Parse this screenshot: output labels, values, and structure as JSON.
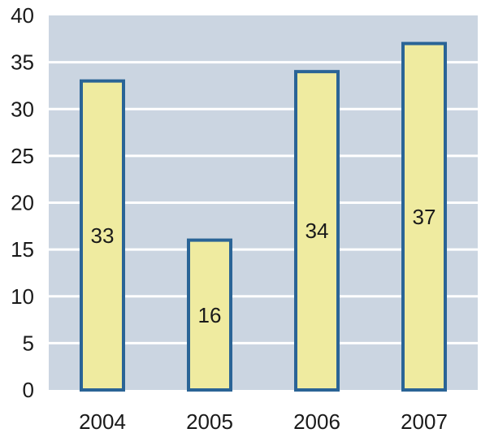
{
  "chart_data": {
    "type": "bar",
    "title": "",
    "xlabel": "",
    "ylabel": "",
    "categories": [
      "2004",
      "2005",
      "2006",
      "2007"
    ],
    "values": [
      33,
      16,
      34,
      37
    ],
    "data_labels": [
      "33",
      "16",
      "34",
      "37"
    ],
    "ylim": [
      0,
      40
    ],
    "yticks": [
      0,
      5,
      10,
      15,
      20,
      25,
      30,
      35,
      40
    ],
    "grid": true,
    "legend": "none"
  },
  "colors": {
    "plot_background": "#cbd5e1",
    "gridline": "#ffffff",
    "bar_fill": "#efeba0",
    "bar_stroke": "#2a6496"
  }
}
